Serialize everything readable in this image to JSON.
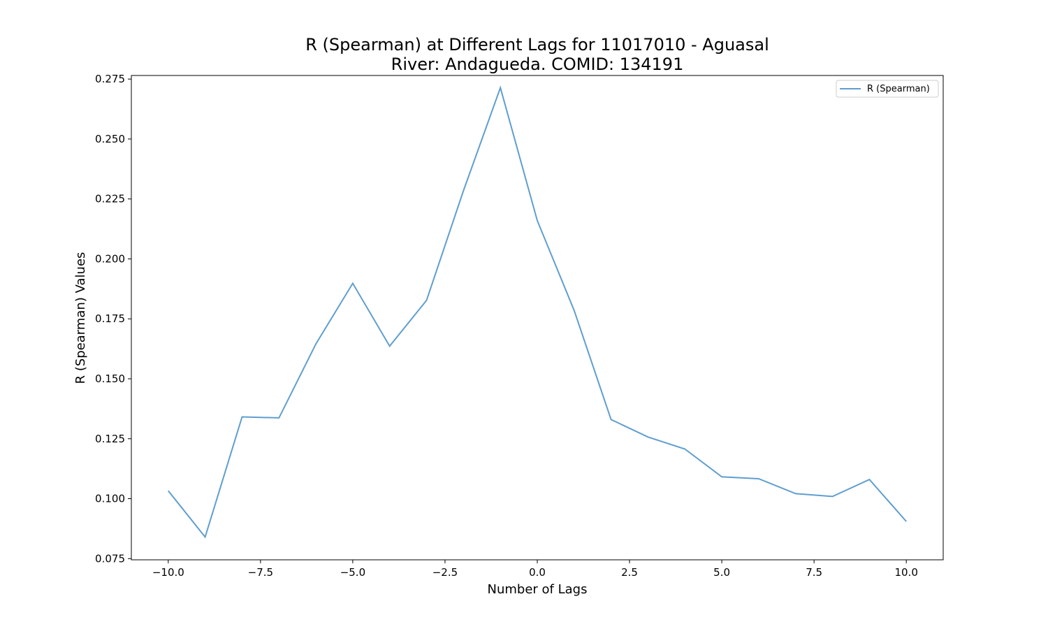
{
  "chart_data": {
    "type": "line",
    "title": "R (Spearman) at Different Lags for 11017010 - Aguasal",
    "subtitle": "River: Andagueda. COMID: 134191",
    "xlabel": "Number of Lags",
    "ylabel": "R (Spearman) Values",
    "xlim": [
      -11,
      11
    ],
    "ylim": [
      0.0745,
      0.2765
    ],
    "xticks": [
      -10.0,
      -7.5,
      -5.0,
      -2.5,
      0.0,
      2.5,
      5.0,
      7.5,
      10.0
    ],
    "xtick_labels": [
      "−10.0",
      "−7.5",
      "−5.0",
      "−2.5",
      "0.0",
      "2.5",
      "5.0",
      "7.5",
      "10.0"
    ],
    "yticks": [
      0.075,
      0.1,
      0.125,
      0.15,
      0.175,
      0.2,
      0.225,
      0.25,
      0.275
    ],
    "ytick_labels": [
      "0.075",
      "0.100",
      "0.125",
      "0.150",
      "0.175",
      "0.200",
      "0.225",
      "0.250",
      "0.275"
    ],
    "grid": false,
    "legend_position": "top-right",
    "series": [
      {
        "name": "R (Spearman)",
        "color": "#5f9ecf",
        "x": [
          -10,
          -9,
          -8,
          -7,
          -6,
          -5,
          -4,
          -3,
          -2,
          -1,
          0,
          1,
          2,
          3,
          4,
          5,
          6,
          7,
          8,
          9,
          10
        ],
        "y": [
          0.1033,
          0.084,
          0.1341,
          0.1337,
          0.1645,
          0.1898,
          0.1636,
          0.1827,
          0.2285,
          0.2714,
          0.216,
          0.1785,
          0.133,
          0.1257,
          0.1207,
          0.1091,
          0.1083,
          0.1021,
          0.1009,
          0.108,
          0.0905
        ]
      }
    ]
  }
}
